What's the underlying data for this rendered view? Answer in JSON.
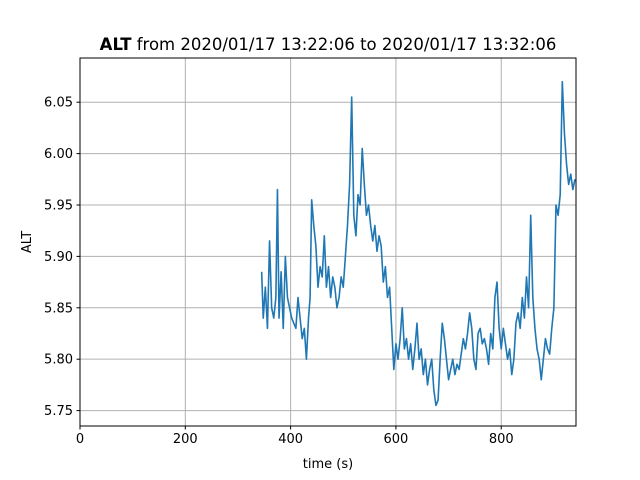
{
  "chart_data": {
    "type": "line",
    "title_bold": "ALT",
    "title_rest": " from 2020/01/17 13:22:06 to 2020/01/17 13:32:06",
    "xlabel": "time (s)",
    "ylabel": "ALT",
    "xlim": [
      0,
      942
    ],
    "ylim": [
      5.735,
      6.093
    ],
    "xticks": [
      0,
      200,
      400,
      600,
      800
    ],
    "yticks": [
      5.75,
      5.8,
      5.85,
      5.9,
      5.95,
      6.0,
      6.05
    ],
    "ytick_labels": [
      "5.75",
      "5.80",
      "5.85",
      "5.90",
      "5.95",
      "6.00",
      "6.05"
    ],
    "grid": true,
    "line_color": "#1f77b4",
    "series": [
      {
        "x": [
          345,
          348,
          352,
          356,
          360,
          364,
          368,
          372,
          375,
          378,
          382,
          386,
          390,
          394,
          398,
          402,
          406,
          410,
          414,
          418,
          422,
          426,
          430,
          434,
          437,
          440,
          444,
          448,
          452,
          456,
          460,
          464,
          468,
          472,
          476,
          480,
          484,
          488,
          492,
          496,
          500,
          504,
          508,
          512,
          516,
          520,
          524,
          528,
          532,
          536,
          540,
          544,
          548,
          552,
          556,
          560,
          564,
          568,
          572,
          576,
          580,
          584,
          588,
          592,
          596,
          600,
          604,
          608,
          612,
          616,
          620,
          624,
          628,
          632,
          636,
          640,
          644,
          648,
          652,
          656,
          660,
          664,
          668,
          672,
          676,
          680,
          684,
          688,
          692,
          696,
          700,
          704,
          708,
          712,
          716,
          720,
          724,
          728,
          732,
          736,
          740,
          744,
          748,
          752,
          756,
          760,
          764,
          768,
          772,
          776,
          780,
          784,
          788,
          792,
          796,
          800,
          804,
          808,
          812,
          816,
          820,
          824,
          828,
          832,
          836,
          840,
          844,
          848,
          852,
          856,
          860,
          864,
          868,
          872,
          876,
          880,
          884,
          888,
          892,
          896,
          900,
          904,
          908,
          912,
          916,
          920,
          924,
          928,
          932,
          936,
          940
        ],
        "y": [
          5.885,
          5.84,
          5.87,
          5.83,
          5.915,
          5.85,
          5.84,
          5.86,
          5.965,
          5.84,
          5.885,
          5.83,
          5.9,
          5.86,
          5.85,
          5.84,
          5.835,
          5.83,
          5.86,
          5.84,
          5.82,
          5.83,
          5.8,
          5.84,
          5.86,
          5.955,
          5.93,
          5.91,
          5.87,
          5.89,
          5.88,
          5.92,
          5.87,
          5.89,
          5.86,
          5.88,
          5.87,
          5.85,
          5.86,
          5.88,
          5.87,
          5.9,
          5.93,
          5.97,
          6.055,
          5.94,
          5.92,
          5.96,
          5.95,
          6.005,
          5.97,
          5.94,
          5.95,
          5.93,
          5.915,
          5.93,
          5.905,
          5.92,
          5.91,
          5.875,
          5.89,
          5.86,
          5.87,
          5.83,
          5.79,
          5.815,
          5.8,
          5.82,
          5.85,
          5.81,
          5.82,
          5.8,
          5.815,
          5.79,
          5.81,
          5.835,
          5.8,
          5.81,
          5.785,
          5.8,
          5.775,
          5.79,
          5.8,
          5.77,
          5.755,
          5.76,
          5.8,
          5.835,
          5.82,
          5.8,
          5.78,
          5.79,
          5.8,
          5.785,
          5.795,
          5.79,
          5.805,
          5.82,
          5.81,
          5.825,
          5.845,
          5.83,
          5.8,
          5.79,
          5.825,
          5.83,
          5.815,
          5.82,
          5.81,
          5.795,
          5.825,
          5.81,
          5.86,
          5.875,
          5.83,
          5.81,
          5.83,
          5.815,
          5.8,
          5.81,
          5.785,
          5.8,
          5.835,
          5.845,
          5.83,
          5.86,
          5.84,
          5.88,
          5.85,
          5.94,
          5.86,
          5.83,
          5.81,
          5.8,
          5.78,
          5.8,
          5.82,
          5.81,
          5.805,
          5.83,
          5.85,
          5.95,
          5.94,
          5.96,
          6.07,
          6.02,
          5.99,
          5.97,
          5.98,
          5.965,
          5.975
        ]
      }
    ]
  }
}
